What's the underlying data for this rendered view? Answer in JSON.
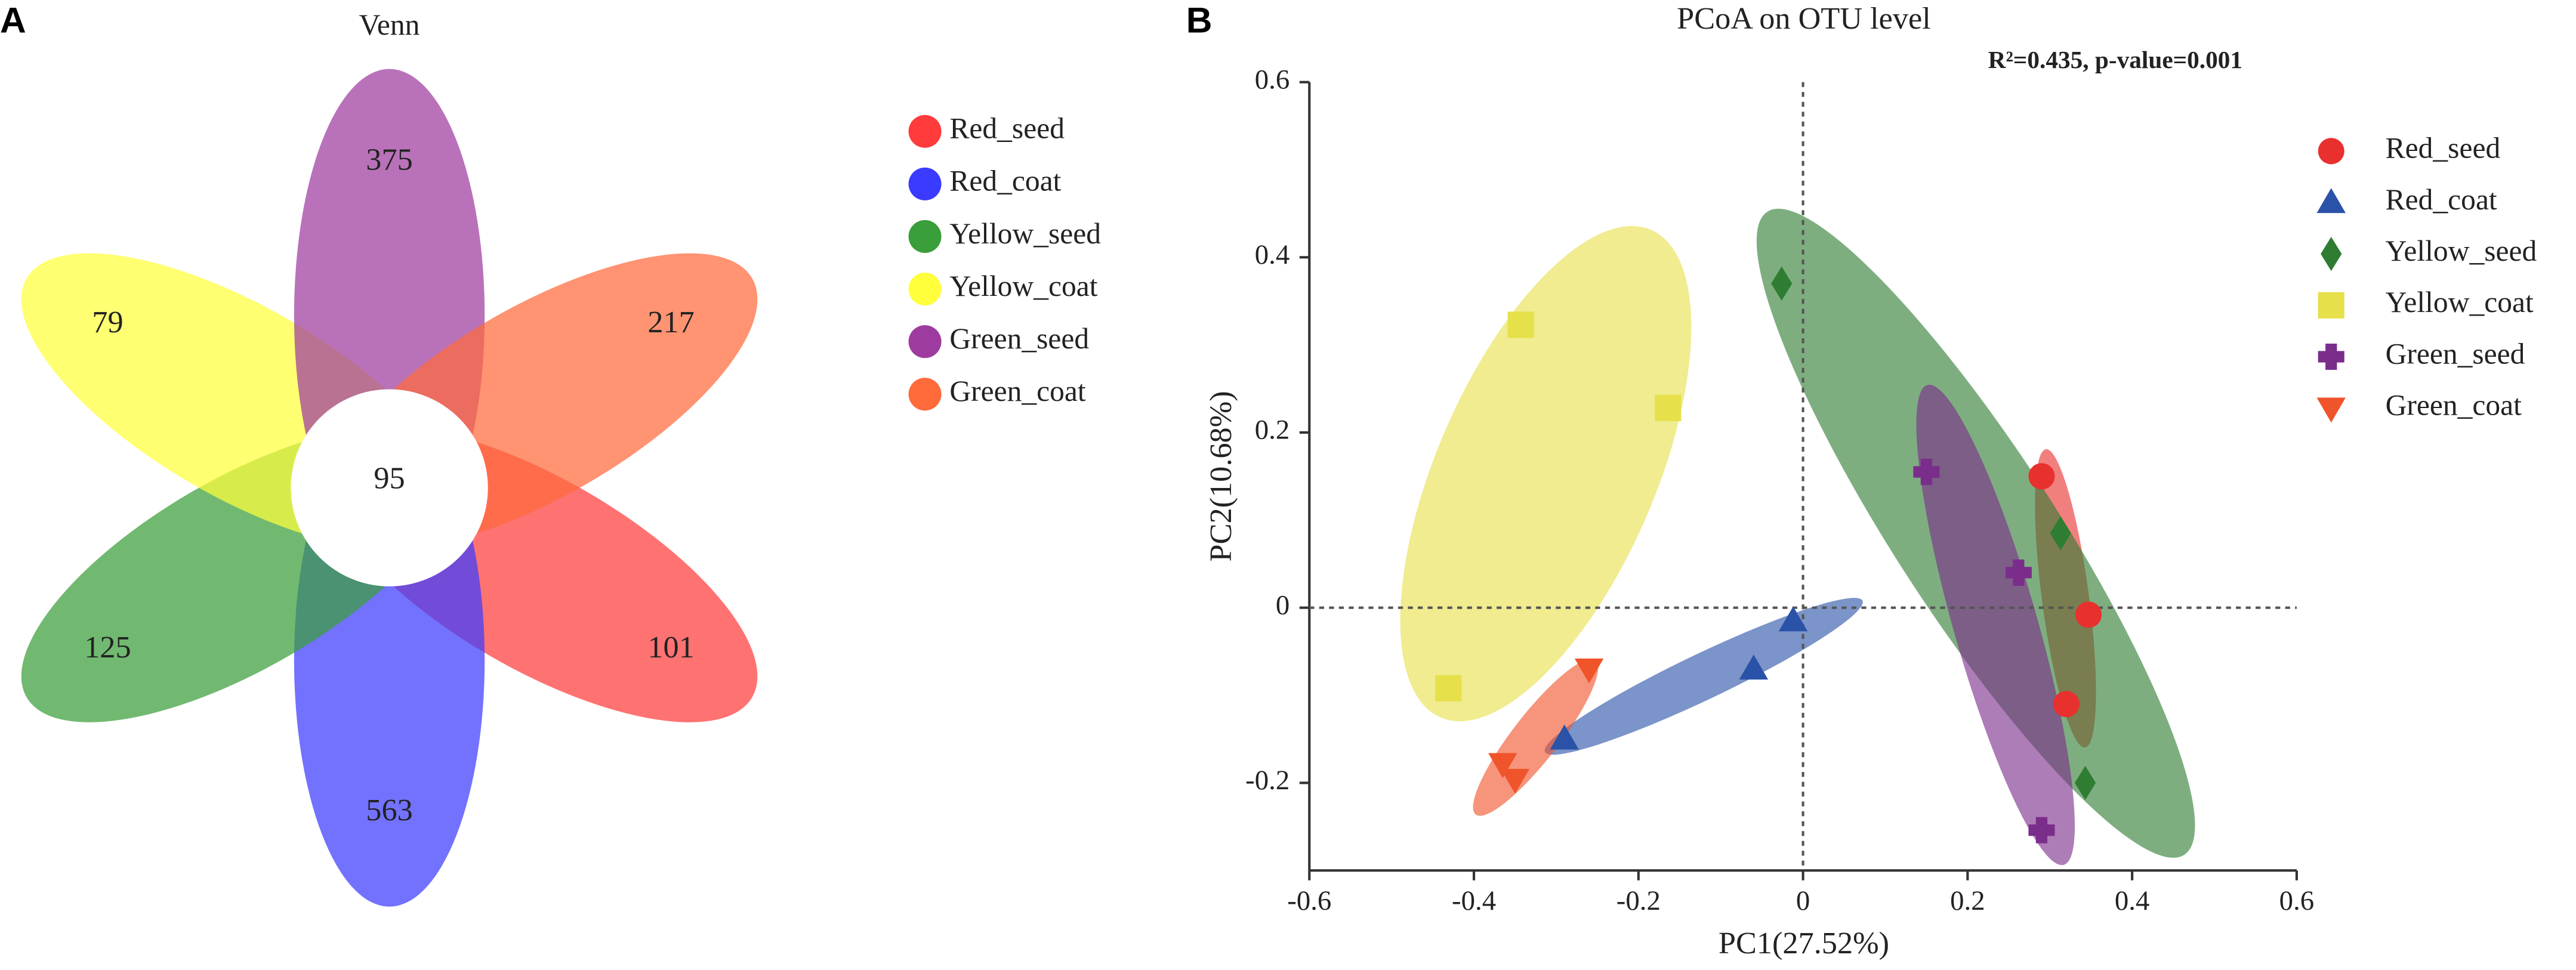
{
  "chart_data": [
    {
      "type": "venn",
      "panel": "A",
      "title": "Venn",
      "sets": [
        {
          "name": "Red_seed",
          "color": "#ff3b3b",
          "value": 101
        },
        {
          "name": "Red_coat",
          "color": "#3b3bff",
          "value": 563
        },
        {
          "name": "Yellow_seed",
          "color": "#3a9e3a",
          "value": 125
        },
        {
          "name": "Yellow_coat",
          "color": "#ffff3b",
          "value": 79
        },
        {
          "name": "Green_seed",
          "color": "#9e3b9e",
          "value": 375
        },
        {
          "name": "Green_coat",
          "color": "#ff6a3b",
          "value": 217
        }
      ],
      "intersection": 95
    },
    {
      "type": "scatter",
      "panel": "B",
      "title": "PCoA on OTU level",
      "annotation": "R²=0.435, p-value=0.001",
      "x_label": "PC1(27.52%)",
      "y_label": "PC2(10.68%)",
      "xlim": [
        -0.6,
        0.6
      ],
      "xticks": [
        -0.6,
        -0.4,
        -0.2,
        0,
        0.2,
        0.4,
        0.6
      ],
      "ylim": [
        -0.3,
        0.6
      ],
      "yticks": [
        -0.2,
        0,
        0.2,
        0.4,
        0.6
      ],
      "zero_lines": true,
      "ellipses": true,
      "series": [
        {
          "name": "Red_seed",
          "color": "#e8302e",
          "marker": "circle",
          "x": [
            0.29,
            0.347,
            0.32
          ],
          "values": [
            0.15,
            -0.008,
            -0.11
          ]
        },
        {
          "name": "Red_coat",
          "color": "#2a52a8",
          "marker": "triangle",
          "x": [
            -0.012,
            -0.06,
            -0.29
          ],
          "values": [
            -0.015,
            -0.07,
            -0.15
          ]
        },
        {
          "name": "Yellow_seed",
          "color": "#2e7d32",
          "marker": "diamond",
          "x": [
            -0.026,
            0.313,
            0.343
          ],
          "values": [
            0.37,
            0.085,
            -0.2
          ]
        },
        {
          "name": "Yellow_coat",
          "color": "#e6e04a",
          "marker": "square",
          "x": [
            -0.343,
            -0.164,
            -0.431
          ],
          "values": [
            0.323,
            0.228,
            -0.092
          ]
        },
        {
          "name": "Green_seed",
          "color": "#7b2d8b",
          "marker": "plus",
          "x": [
            0.15,
            0.262,
            0.29
          ],
          "values": [
            0.155,
            0.04,
            -0.254
          ]
        },
        {
          "name": "Green_coat",
          "color": "#f0542a",
          "marker": "triangle-down",
          "x": [
            -0.26,
            -0.365,
            -0.35
          ],
          "values": [
            -0.07,
            -0.178,
            -0.196
          ]
        }
      ]
    }
  ]
}
